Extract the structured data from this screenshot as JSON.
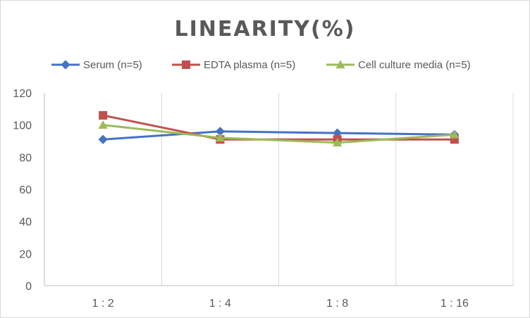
{
  "chart_data": {
    "type": "line",
    "title": "LINEARITY(%)",
    "xlabel": "",
    "ylabel": "",
    "categories": [
      "1 : 2",
      "1 : 4",
      "1 : 8",
      "1 : 16"
    ],
    "ylim": [
      0,
      120
    ],
    "yticks": [
      0,
      20,
      40,
      60,
      80,
      100,
      120
    ],
    "grid": "vertical-category",
    "legend_position": "top",
    "series": [
      {
        "name": "Serum (n=5)",
        "values": [
          91,
          96,
          95,
          94
        ],
        "color": "#4472c4",
        "marker": "diamond"
      },
      {
        "name": "EDTA plasma (n=5)",
        "values": [
          106,
          91,
          91,
          91
        ],
        "color": "#c0504d",
        "marker": "square"
      },
      {
        "name": "Cell culture media (n=5)",
        "values": [
          100,
          92,
          89,
          94
        ],
        "color": "#9bbb59",
        "marker": "triangle"
      }
    ]
  }
}
